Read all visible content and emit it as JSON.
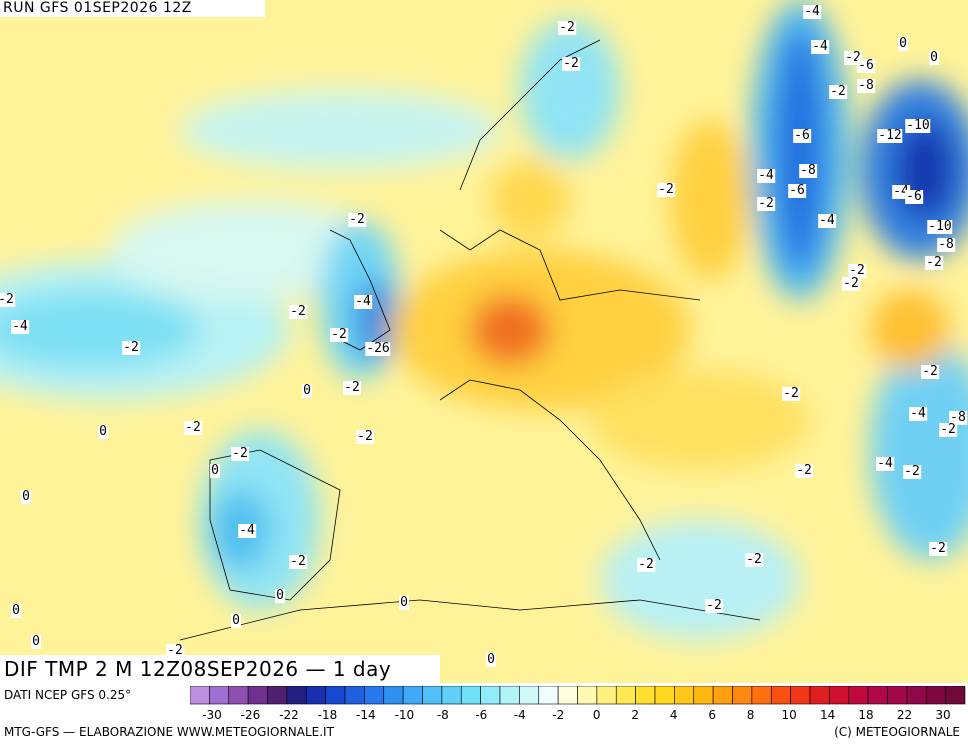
{
  "header": {
    "run": "RUN GFS 01SEP2026 12Z",
    "title": "DIF TMP 2 M 12Z08SEP2026 — 1 day"
  },
  "footer": {
    "source": "DATI NCEP GFS 0.25°",
    "credit": "MTG-GFS — ELABORAZIONE WWW.METEOGIORNALE.IT",
    "copyright": "(C) METEOGIORNALE"
  },
  "colorbar": {
    "colors": [
      "#c090e0",
      "#a070d0",
      "#9050b0",
      "#703090",
      "#502070",
      "#202080",
      "#1830b0",
      "#1848d0",
      "#2060e0",
      "#2878f0",
      "#3090f0",
      "#40a8f8",
      "#50c0f8",
      "#60d0f8",
      "#70e0f8",
      "#90ecf8",
      "#b0f4f8",
      "#d0fafa",
      "#f0ffff",
      "#ffffe0",
      "#fff8b0",
      "#fff080",
      "#ffe850",
      "#ffe030",
      "#ffd820",
      "#ffc818",
      "#ffb810",
      "#ffa010",
      "#ff8810",
      "#ff7010",
      "#f85010",
      "#f03818",
      "#e02020",
      "#d01030",
      "#c00840",
      "#b00848",
      "#a00848",
      "#900848",
      "#800840",
      "#700838"
    ],
    "labels": [
      "-30",
      "-26",
      "-22",
      "-18",
      "-14",
      "-10",
      "-8",
      "-6",
      "-4",
      "-2",
      "0",
      "2",
      "4",
      "6",
      "8",
      "10",
      "14",
      "18",
      "22",
      "30"
    ]
  },
  "map": {
    "labels": [
      "-4",
      "-2",
      "-4",
      "-2",
      "-6",
      "0",
      "0",
      "-2",
      "-8",
      "-2",
      "-10",
      "-12",
      "-6",
      "-2",
      "-4",
      "-8",
      "-6",
      "-2",
      "-4",
      "-6",
      "-4",
      "-10",
      "-8",
      "-2",
      "-2",
      "-2",
      "-2",
      "-2",
      "-4",
      "-2",
      "-4",
      "-2",
      "-2",
      "-26",
      "0",
      "-2",
      "-2",
      "-2",
      "-4",
      "-8",
      "-2",
      "-2",
      "-2",
      "0",
      "-2",
      "0",
      "-4",
      "-2",
      "-2",
      "0",
      "-4",
      "-2",
      "-2",
      "-2",
      "-2",
      "0",
      "0",
      "-2",
      "0",
      "0",
      "0",
      "-2",
      "0"
    ]
  }
}
